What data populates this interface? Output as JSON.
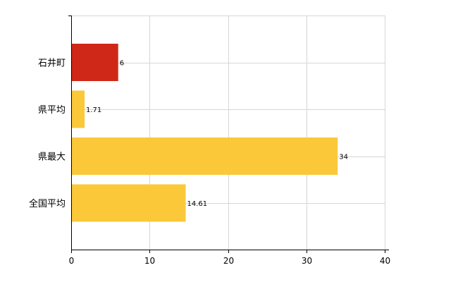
{
  "chart_data": {
    "type": "bar",
    "orientation": "horizontal",
    "categories": [
      "石井町",
      "県平均",
      "県最大",
      "全国平均"
    ],
    "values": [
      6,
      1.71,
      34,
      14.61
    ],
    "value_labels": [
      "6",
      "1.71",
      "34",
      "14.61"
    ],
    "colors": [
      "#d02818",
      "#fbc83a",
      "#fbc83a",
      "#fbc83a"
    ],
    "xlim": [
      0,
      40
    ],
    "xticks": [
      0,
      10,
      20,
      30,
      40
    ],
    "grid": true,
    "title": "",
    "xlabel": "",
    "ylabel": ""
  }
}
